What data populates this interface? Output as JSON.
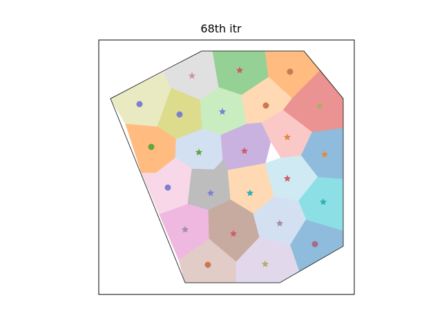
{
  "title": "68th itr",
  "cells": [
    {
      "fill": "#e9e9c2",
      "seed": "#7f7fd0",
      "seedShape": "dot"
    },
    {
      "fill": "#e0e0e0",
      "seed": "#d68fa8",
      "seedShape": "star"
    },
    {
      "fill": "#95d195",
      "seed": "#d05a6a",
      "seedShape": "star"
    },
    {
      "fill": "#ffbb80",
      "seed": "#c87a50",
      "seedShape": "dot"
    },
    {
      "fill": "#dcdc8c",
      "seed": "#7f7fd0",
      "seedShape": "dot"
    },
    {
      "fill": "#c9ecc1",
      "seed": "#7f7fd0",
      "seedShape": "star"
    },
    {
      "fill": "#ffd9b3",
      "seed": "#c87a50",
      "seedShape": "dot"
    },
    {
      "fill": "#eb9292",
      "seed": "#a9b060",
      "seedShape": "star"
    },
    {
      "fill": "#ffbb80",
      "seed": "#5fa640",
      "seedShape": "dot"
    },
    {
      "fill": "#d3e0f2",
      "seed": "#5fa640",
      "seedShape": "star"
    },
    {
      "fill": "#c9b2e0",
      "seed": "#d05a6a",
      "seedShape": "star"
    },
    {
      "fill": "#fbc8c8",
      "seed": "#e08a40",
      "seedShape": "star"
    },
    {
      "fill": "#8fbcdc",
      "seed": "#e08a40",
      "seedShape": "star"
    },
    {
      "fill": "#f8d8e8",
      "seed": "#7f7fd0",
      "seedShape": "dot"
    },
    {
      "fill": "#bdbdbd",
      "seed": "#7f7fd0",
      "seedShape": "star"
    },
    {
      "fill": "#ffd9b3",
      "seed": "#30b0b0",
      "seedShape": "star"
    },
    {
      "fill": "#cfeaf2",
      "seed": "#d05a6a",
      "seedShape": "star"
    },
    {
      "fill": "#8ddfe6",
      "seed": "#30b0b0",
      "seedShape": "star"
    },
    {
      "fill": "#efb8e0",
      "seed": "#a28fa0",
      "seedShape": "star"
    },
    {
      "fill": "#c8aba0",
      "seed": "#d05a6a",
      "seedShape": "star"
    },
    {
      "fill": "#d3e0f2",
      "seed": "#a28fa0",
      "seedShape": "star"
    },
    {
      "fill": "#8fbcdc",
      "seed": "#a86a8a",
      "seedShape": "dot"
    },
    {
      "fill": "#e2ccc8",
      "seed": "#c87a50",
      "seedShape": "dot"
    },
    {
      "fill": "#e2d8ec",
      "seed": "#b0b060",
      "seedShape": "star"
    }
  ]
}
